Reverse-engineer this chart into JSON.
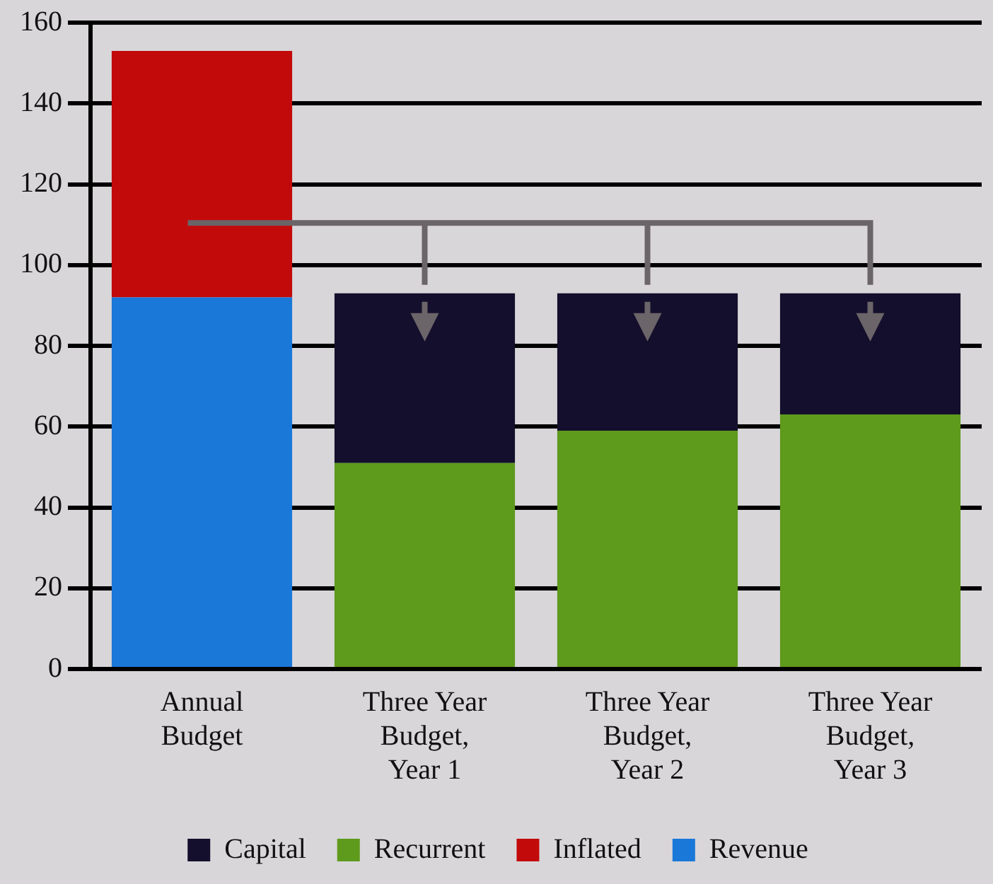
{
  "chart_data": {
    "type": "bar",
    "stacked": true,
    "categories": [
      "Annual Budget",
      "Three Year Budget, Year 1",
      "Three Year Budget, Year 2",
      "Three Year Budget, Year 3"
    ],
    "series": [
      {
        "name": "Revenue",
        "color": "#1a78d8",
        "values": [
          92,
          null,
          null,
          null
        ]
      },
      {
        "name": "Recurrent",
        "color": "#5e9a1c",
        "values": [
          null,
          51,
          59,
          63
        ]
      },
      {
        "name": "Inflated",
        "color": "#c20a0a",
        "values": [
          61,
          null,
          null,
          null
        ]
      },
      {
        "name": "Capital",
        "color": "#140f2c",
        "values": [
          null,
          42,
          34,
          30
        ]
      }
    ],
    "ylim": [
      0,
      160
    ],
    "yticks": [
      0,
      20,
      40,
      60,
      80,
      100,
      120,
      140,
      160
    ],
    "grid": "y",
    "legend": "bottom"
  }
}
